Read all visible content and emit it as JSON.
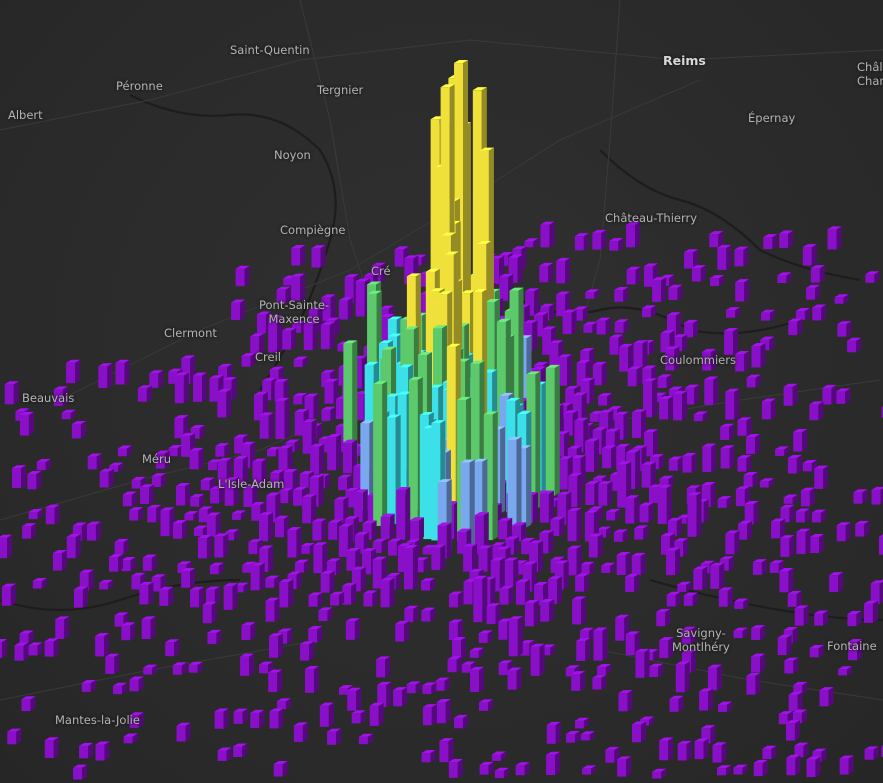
{
  "map": {
    "colors": {
      "background": "#2b2b2b",
      "roads": "#3c3c3c",
      "rivers": "#1c1c1c",
      "bar_low": "#8a0fc8",
      "bar_mid_low": "#7aa8ee",
      "bar_mid": "#3ce0e8",
      "bar_mid_high": "#9ee6a8",
      "bar_mid_high_2": "#5cc96a",
      "bar_high": "#f0e03a"
    },
    "layer_type": "3d-hexagon-grid-extruded-bars",
    "places": [
      {
        "name": "Saint-Quentin",
        "major": false
      },
      {
        "name": "Péronne",
        "major": false
      },
      {
        "name": "Albert",
        "major": false
      },
      {
        "name": "Tergnier",
        "major": false
      },
      {
        "name": "Reims",
        "major": true
      },
      {
        "name": "Châlo\nChan",
        "major": false
      },
      {
        "name": "Épernay",
        "major": false
      },
      {
        "name": "Noyon",
        "major": false
      },
      {
        "name": "Château-Thierry",
        "major": false
      },
      {
        "name": "Compiègne",
        "major": false
      },
      {
        "name": "Cré",
        "major": false
      },
      {
        "name": "Pont-Sainte-\nMaxence",
        "major": false
      },
      {
        "name": "Clermont",
        "major": false
      },
      {
        "name": "Creil",
        "major": false
      },
      {
        "name": "Coulommiers",
        "major": false
      },
      {
        "name": "Beauvais",
        "major": false
      },
      {
        "name": "Méru",
        "major": false
      },
      {
        "name": "L'Isle-Adam",
        "major": false
      },
      {
        "name": "Fontaine",
        "major": false
      },
      {
        "name": "Savigny-\nMontlhéry",
        "major": false
      },
      {
        "name": "Mantes-la-Jolie",
        "major": false
      }
    ]
  }
}
